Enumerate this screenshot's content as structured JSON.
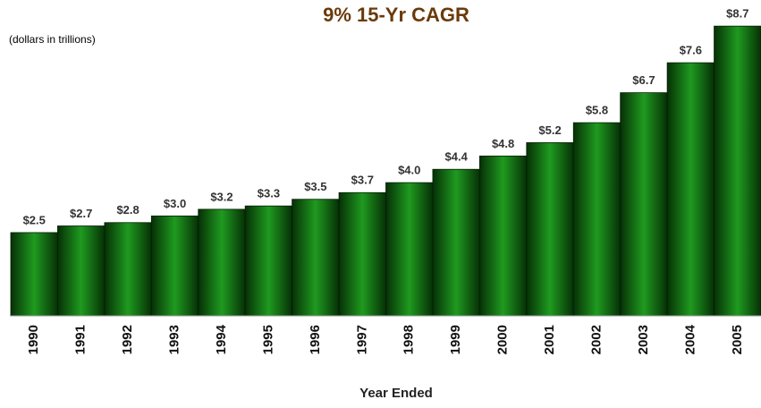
{
  "chart_data": {
    "type": "bar",
    "title": "9% 15-Yr CAGR",
    "subtitle": "(dollars in trillions)",
    "x_label": "Year Ended",
    "categories": [
      "1990",
      "1991",
      "1992",
      "1993",
      "1994",
      "1995",
      "1996",
      "1997",
      "1998",
      "1999",
      "2000",
      "2001",
      "2002",
      "2003",
      "2004",
      "2005"
    ],
    "values": [
      2.5,
      2.7,
      2.8,
      3.0,
      3.2,
      3.3,
      3.5,
      3.7,
      4.0,
      4.4,
      4.8,
      5.2,
      5.8,
      6.7,
      7.6,
      8.7
    ],
    "value_labels": [
      "$2.5",
      "$2.7",
      "$2.8",
      "$3.0",
      "$3.2",
      "$3.3",
      "$3.5",
      "$3.7",
      "$4.0",
      "$4.4",
      "$4.8",
      "$5.2",
      "$5.8",
      "$6.7",
      "$7.6",
      "$8.7"
    ],
    "color": "#1f9a1f",
    "ylim": [
      0,
      9
    ]
  }
}
